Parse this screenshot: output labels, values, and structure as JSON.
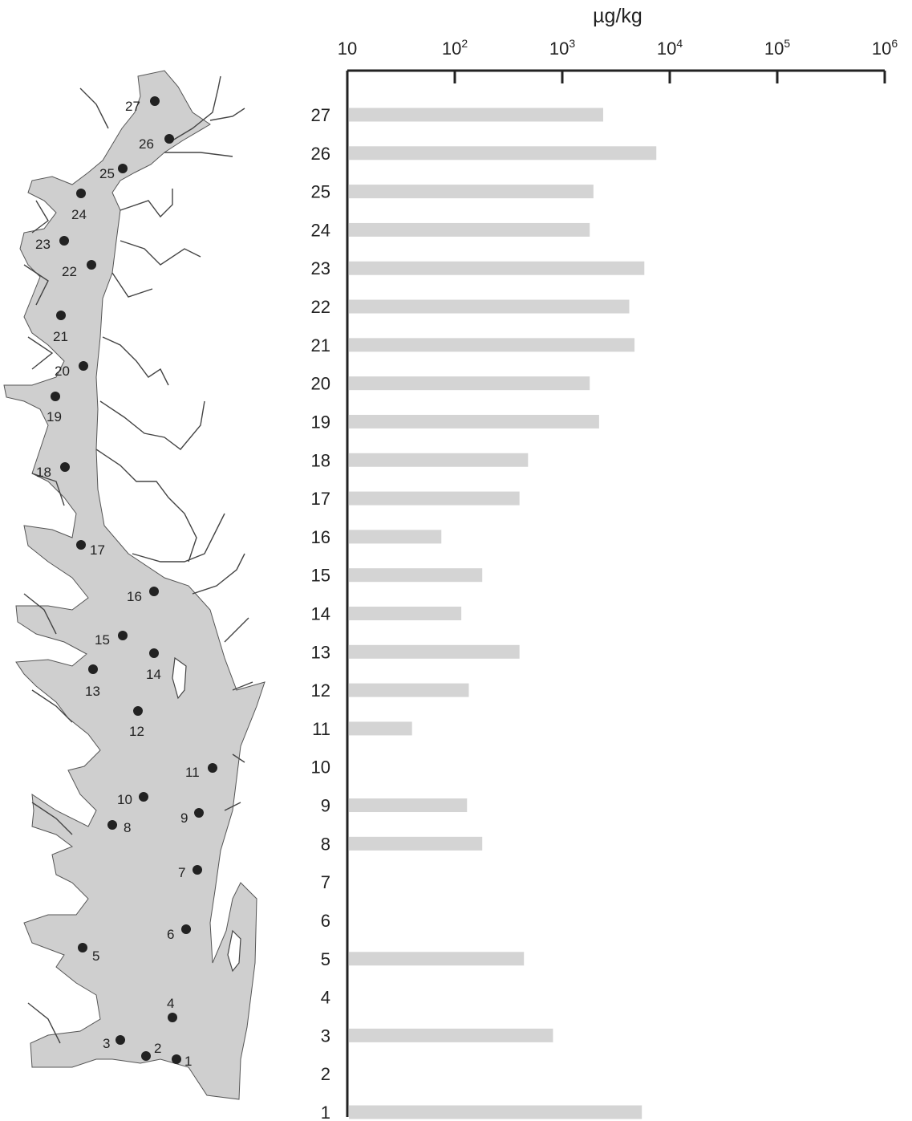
{
  "chart_data": {
    "type": "bar",
    "orientation": "horizontal",
    "xlabel": "µg/kg",
    "x_scale": "log",
    "xlim": [
      10,
      1000000
    ],
    "x_ticks": [
      10,
      100,
      1000,
      10000,
      100000,
      1000000
    ],
    "x_tick_labels": [
      {
        "base": "10",
        "exp": ""
      },
      {
        "base": "10",
        "exp": "2"
      },
      {
        "base": "10",
        "exp": "3"
      },
      {
        "base": "10",
        "exp": "4"
      },
      {
        "base": "10",
        "exp": "5"
      },
      {
        "base": "10",
        "exp": "6"
      }
    ],
    "categories": [
      "27",
      "26",
      "25",
      "24",
      "23",
      "22",
      "21",
      "20",
      "19",
      "18",
      "17",
      "16",
      "15",
      "14",
      "13",
      "12",
      "11",
      "10",
      "9",
      "8",
      "7",
      "6",
      "5",
      "4",
      "3",
      "2",
      "1"
    ],
    "values": [
      2400,
      7500,
      1950,
      1800,
      5800,
      4200,
      4700,
      1800,
      2200,
      480,
      400,
      75,
      180,
      115,
      400,
      135,
      40,
      null,
      130,
      180,
      null,
      null,
      440,
      null,
      820,
      null,
      5500
    ],
    "bar_color": "#d4d4d4",
    "grid": false
  },
  "map": {
    "water_color": "#cfcfcf",
    "station_color": "#222222",
    "stations": [
      "1",
      "2",
      "3",
      "4",
      "5",
      "6",
      "7",
      "8",
      "9",
      "10",
      "11",
      "12",
      "13",
      "14",
      "15",
      "16",
      "17",
      "18",
      "19",
      "20",
      "21",
      "22",
      "23",
      "24",
      "25",
      "26",
      "27"
    ]
  }
}
